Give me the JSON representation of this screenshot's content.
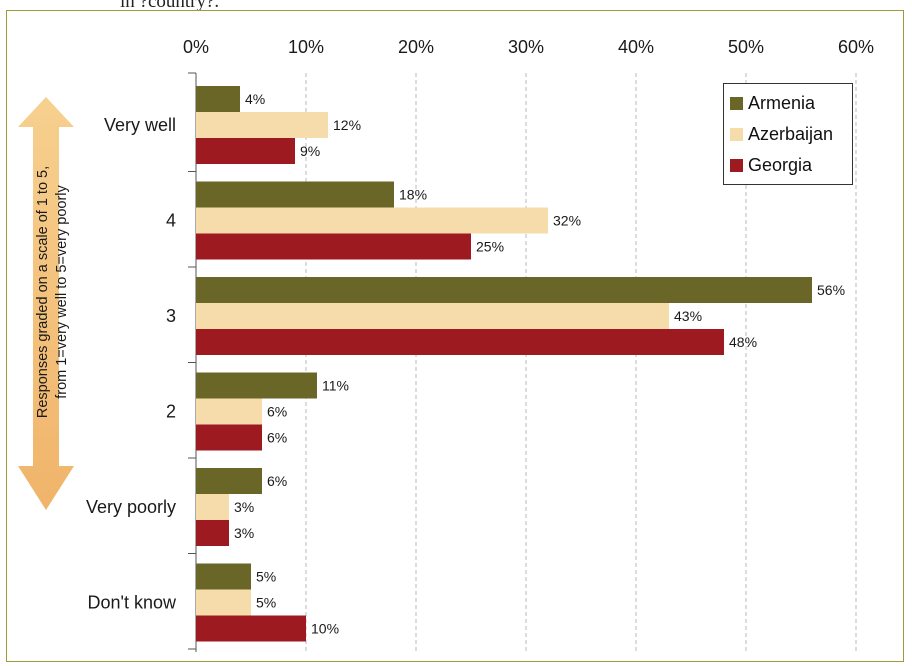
{
  "header": {
    "partial_text": "in ?country?."
  },
  "chart_data": {
    "type": "bar",
    "orientation": "horizontal",
    "categories": [
      "Very well",
      "4",
      "3",
      "2",
      "Very poorly",
      "Don't know"
    ],
    "series": [
      {
        "name": "Armenia",
        "color": "#6a6628",
        "values": [
          4,
          18,
          56,
          11,
          6,
          5
        ]
      },
      {
        "name": "Azerbaijan",
        "color": "#f6dcab",
        "values": [
          12,
          32,
          43,
          6,
          3,
          5
        ]
      },
      {
        "name": "Georgia",
        "color": "#9c1a20",
        "values": [
          9,
          25,
          48,
          6,
          3,
          10
        ]
      }
    ],
    "value_ticks": [
      "0%",
      "10%",
      "20%",
      "30%",
      "40%",
      "50%",
      "60%"
    ],
    "xlim": [
      0,
      60
    ],
    "value_axis_position": "top",
    "grid": "vertical dashed",
    "legend_placement": "top-right",
    "axis_title_lines": [
      "Responses graded on a scale of 1 to 5,",
      "from 1=very well to 5=very poorly"
    ],
    "value_suffix": "%"
  }
}
